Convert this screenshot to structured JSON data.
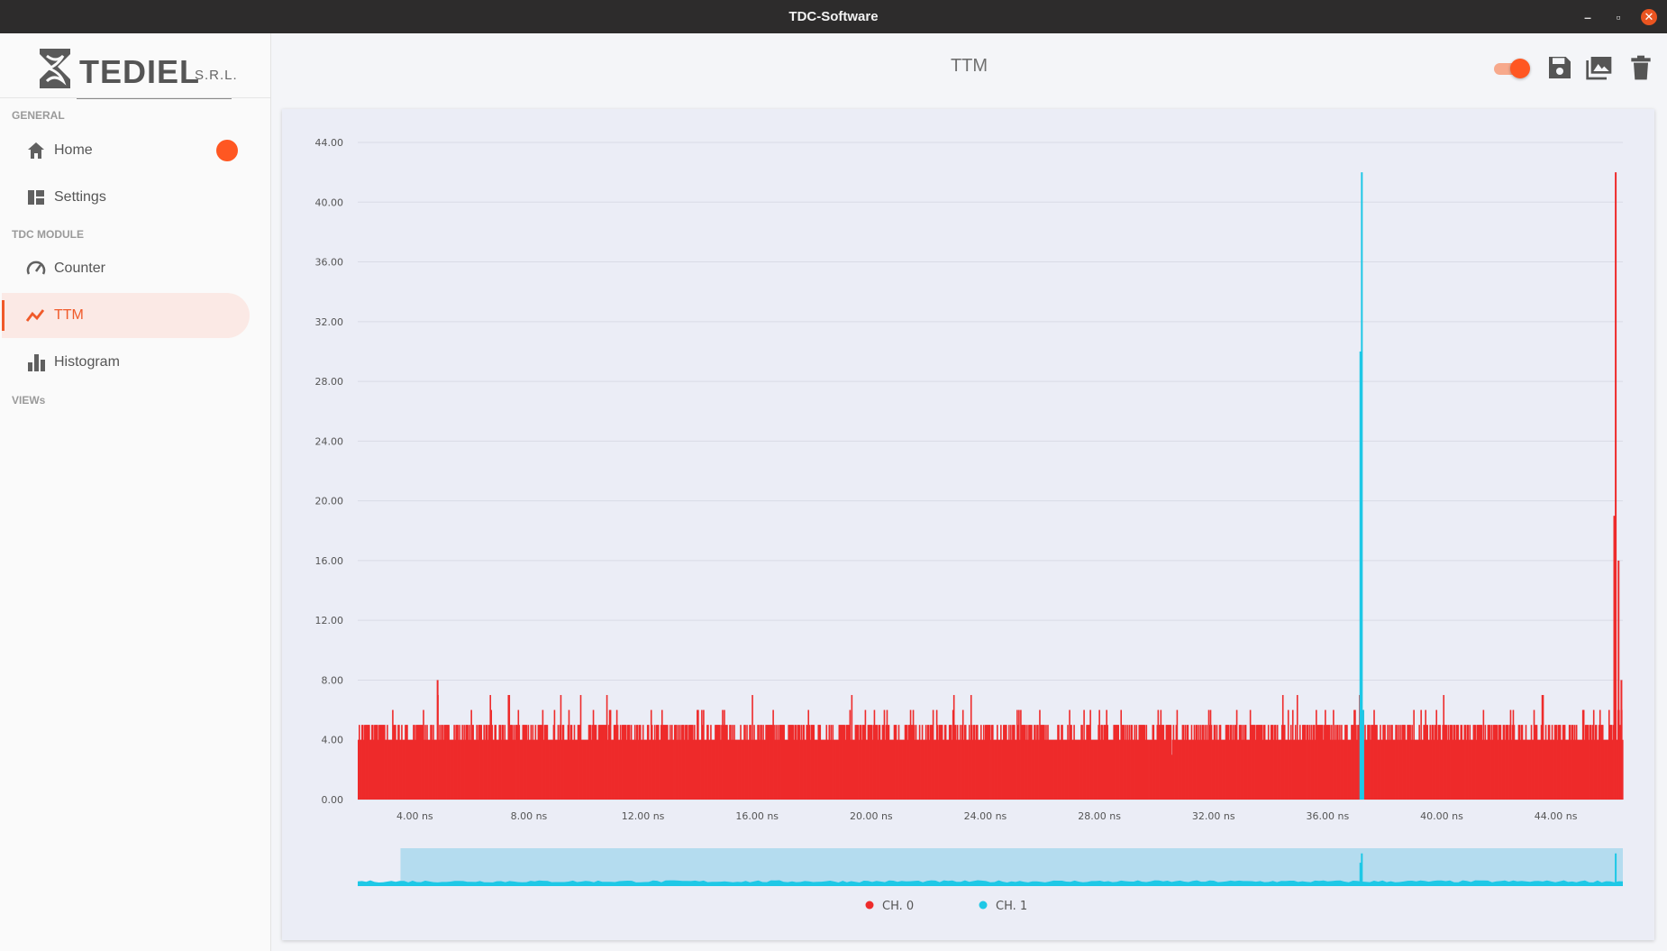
{
  "window": {
    "title": "TDC-Software"
  },
  "brand": {
    "name": "TEDIEL",
    "suffix": "S.R.L."
  },
  "sidebar": {
    "sections": [
      "GENERAL",
      "TDC MODULE",
      "VIEWs"
    ],
    "items": [
      {
        "label": "Home",
        "icon": "home-icon"
      },
      {
        "label": "Settings",
        "icon": "dashboard-icon"
      },
      {
        "label": "Counter",
        "icon": "speedometer-icon"
      },
      {
        "label": "TTM",
        "icon": "line-chart-icon",
        "active": true
      },
      {
        "label": "Histogram",
        "icon": "bar-chart-icon"
      }
    ]
  },
  "header": {
    "title": "TTM"
  },
  "colors": {
    "accent": "#ff5722",
    "ch0": "#ee2b2b",
    "ch1": "#1ec8e6"
  },
  "chart_data": {
    "type": "bar",
    "x_unit": "ns",
    "x_range": [
      2.0,
      46.35
    ],
    "ylim": [
      0,
      44
    ],
    "y_ticks": [
      "0.00",
      "4.00",
      "8.00",
      "12.00",
      "16.00",
      "20.00",
      "24.00",
      "28.00",
      "32.00",
      "36.00",
      "40.00",
      "44.00"
    ],
    "x_ticks": [
      "4.00 ns",
      "8.00 ns",
      "12.00 ns",
      "16.00 ns",
      "20.00 ns",
      "24.00 ns",
      "28.00 ns",
      "32.00 ns",
      "36.00 ns",
      "40.00 ns",
      "44.00 ns"
    ],
    "series": [
      {
        "name": "CH. 0",
        "baseline_values": [
          4,
          5
        ],
        "occasional_values": [
          6,
          7,
          8
        ],
        "peaks": [
          {
            "x": 46.1,
            "y": 42
          },
          {
            "x": 46.05,
            "y": 19
          },
          {
            "x": 46.2,
            "y": 16
          },
          {
            "x": 46.3,
            "y": 8
          },
          {
            "x": 4.8,
            "y": 8
          }
        ]
      },
      {
        "name": "CH. 1",
        "peaks": [
          {
            "x": 37.2,
            "y": 42
          },
          {
            "x": 37.15,
            "y": 30
          },
          {
            "x": 37.25,
            "y": 6
          }
        ]
      }
    ],
    "navigator": {
      "selected_range": [
        3.5,
        46.35
      ]
    },
    "legend_position": "bottom-center"
  }
}
